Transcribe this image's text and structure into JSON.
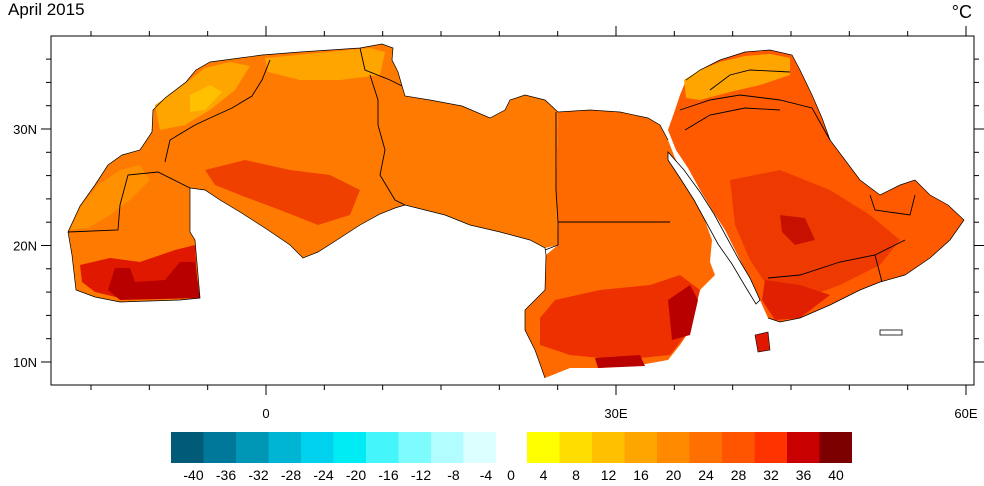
{
  "title": "April 2015",
  "units": "°C",
  "map": {
    "lat_ticks": [
      {
        "value": 30,
        "label": "30N"
      },
      {
        "value": 20,
        "label": "20N"
      },
      {
        "value": 10,
        "label": "10N"
      }
    ],
    "lon_ticks": [
      {
        "value": 0,
        "label": "0"
      },
      {
        "value": 30,
        "label": "30E"
      },
      {
        "value": 60,
        "label": "60E"
      }
    ],
    "lon_range": [
      -19,
      60
    ],
    "lat_range": [
      8,
      38
    ]
  },
  "colorbar": {
    "cold": {
      "colors": [
        "#005a78",
        "#007899",
        "#0096b5",
        "#00b4d4",
        "#00d2ee",
        "#00ecf5",
        "#44f5fb",
        "#7efbfd",
        "#b2fdff",
        "#dcffff"
      ],
      "labels": [
        "-40",
        "-36",
        "-32",
        "-28",
        "-24",
        "-20",
        "-16",
        "-12",
        "-8",
        "-4"
      ]
    },
    "zero_label": "0",
    "warm": {
      "colors": [
        "#ffff00",
        "#ffdd00",
        "#ffc000",
        "#ffa500",
        "#ff8a00",
        "#ff7000",
        "#ff5500",
        "#ff3300",
        "#c80000",
        "#7c0000"
      ],
      "labels": [
        "4",
        "8",
        "12",
        "16",
        "20",
        "24",
        "28",
        "32",
        "36",
        "40"
      ]
    }
  }
}
